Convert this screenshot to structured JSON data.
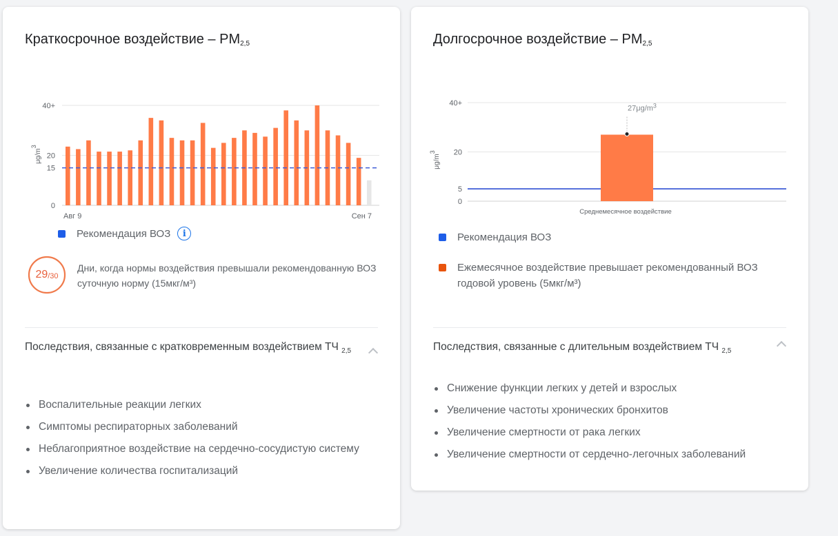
{
  "left_card": {
    "title_main": "Краткосрочное воздействие – PM",
    "title_sub": "2,5",
    "legend_label": "Рекомендация ВОЗ",
    "days_count": "29",
    "days_total": "/30",
    "days_description": "Дни, когда нормы воздействия превышали рекомендованную ВОЗ суточную норму (15мкг/м³)",
    "section_title_main": "Последствия, связанные с кратковременным воздействием ТЧ",
    "section_title_sub": "2,5",
    "effects": [
      "Воспалительные реакции легких",
      "Симптомы респираторных заболеваний",
      "Неблагоприятное воздействие на сердечно-сосудистую систему",
      "Увеличение количества госпитализаций"
    ]
  },
  "right_card": {
    "title_main": "Долгосрочное воздействие – PM",
    "title_sub": "2,5",
    "legend_who": "Рекомендация ВОЗ",
    "legend_exceed": "Ежемесячное воздействие превышает рекомендованный ВОЗ годовой уровень (5мкг/м³)",
    "section_title_main": "Последствия, связанные с длительным воздействием ТЧ",
    "section_title_sub": "2,5",
    "effects": [
      "Снижение функции легких у детей и взрослых",
      "Увеличение частоты хронических бронхитов",
      "Увеличение смертности от рака легких",
      "Увеличение смертности от сердечно-легочных заболеваний"
    ]
  },
  "colors": {
    "bar": "#ff7b47",
    "who_line": "#3d5bd6",
    "legend_blue": "#1e5ee8",
    "legend_orange": "#e8540d",
    "missing_bar": "#e6e6e6",
    "ring": "#f07a4b"
  },
  "chart_data": [
    {
      "type": "bar",
      "ylabel": "μg/m3",
      "ylim": [
        0,
        40
      ],
      "yticks": [
        "0",
        "15",
        "20",
        "40+"
      ],
      "x_start_label": "Авг 9",
      "x_end_label": "Сен 7",
      "values": [
        23.5,
        22.5,
        26,
        21.5,
        21.5,
        21.5,
        22,
        26,
        35,
        34,
        27,
        26,
        26,
        33,
        23,
        25,
        27,
        30,
        29,
        27.5,
        31,
        38,
        34,
        30,
        40,
        30,
        28,
        25,
        19,
        null
      ],
      "reference_line": 15,
      "reference_name": "Рекомендация ВОЗ"
    },
    {
      "type": "bar",
      "ylabel": "μg/m3",
      "ylim": [
        0,
        40
      ],
      "yticks": [
        "0",
        "5",
        "20",
        "40+"
      ],
      "categories": [
        "Среднемесячное воздействие"
      ],
      "values": [
        27
      ],
      "value_label": "27μg/m3",
      "reference_line": 5,
      "reference_name": "Рекомендация ВОЗ"
    }
  ]
}
